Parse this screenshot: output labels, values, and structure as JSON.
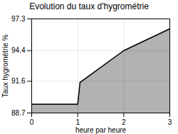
{
  "chart_data": {
    "type": "area",
    "title": "Evolution du taux d'hygrométrie",
    "xlabel": "heure par heure",
    "ylabel": "Taux hygrométrie %",
    "x": [
      0,
      1,
      1.05,
      2,
      3
    ],
    "values": [
      89.5,
      89.5,
      91.5,
      94.4,
      96.4
    ],
    "xlim": [
      0,
      3
    ],
    "ylim": [
      88.7,
      97.3
    ],
    "xticks": [
      0,
      1,
      2,
      3
    ],
    "yticks": [
      88.7,
      91.6,
      94.4,
      97.3
    ],
    "grid": true
  }
}
